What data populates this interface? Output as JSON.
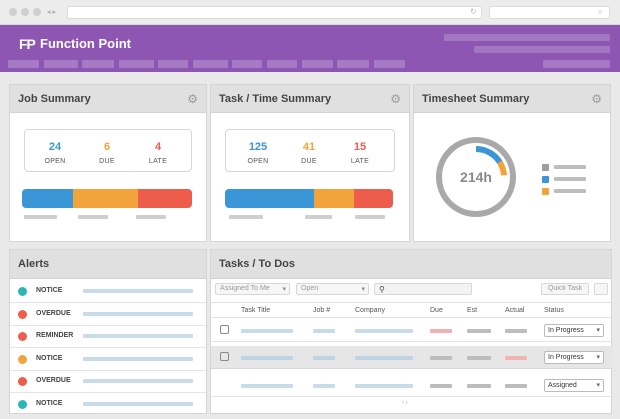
{
  "app": {
    "name": "Function Point",
    "logo_mark": "FP"
  },
  "colors": {
    "purple": "#8e56b3",
    "blue": "#3a96d6",
    "orange": "#f3a33b",
    "red": "#ee5c4b",
    "teal": "#2bb5b5"
  },
  "job_summary": {
    "title": "Job Summary",
    "stats": [
      {
        "value": "24",
        "label": "OPEN",
        "color": "#3a96d6"
      },
      {
        "value": "6",
        "label": "DUE",
        "color": "#f3a33b"
      },
      {
        "value": "4",
        "label": "LATE",
        "color": "#ee5c4b"
      }
    ],
    "bar_fractions": [
      0.3,
      0.38,
      0.32
    ]
  },
  "task_time_summary": {
    "title": "Task / Time Summary",
    "stats": [
      {
        "value": "125",
        "label": "OPEN",
        "color": "#3a96d6"
      },
      {
        "value": "41",
        "label": "DUE",
        "color": "#f3a33b"
      },
      {
        "value": "15",
        "label": "LATE",
        "color": "#ee5c4b"
      }
    ],
    "bar_fractions": [
      0.53,
      0.24,
      0.23
    ]
  },
  "timesheet_summary": {
    "title": "Timesheet Summary",
    "hours": "214h",
    "ring_progress": [
      {
        "color": "#3a96d6",
        "fraction": 0.16
      },
      {
        "color": "#f3a33b",
        "fraction": 0.08
      }
    ],
    "legend_colors": [
      "#9e9e9e",
      "#3a96d6",
      "#f3a33b"
    ]
  },
  "alerts": {
    "title": "Alerts",
    "items": [
      {
        "label": "NOTICE",
        "color": "#2bb5b5"
      },
      {
        "label": "OVERDUE",
        "color": "#ee5c4b"
      },
      {
        "label": "REMINDER",
        "color": "#ee5c4b"
      },
      {
        "label": "NOTICE",
        "color": "#f3a33b"
      },
      {
        "label": "OVERDUE",
        "color": "#ee5c4b"
      },
      {
        "label": "NOTICE",
        "color": "#2bb5b5"
      }
    ]
  },
  "tasks": {
    "title": "Tasks / To Dos",
    "filters": {
      "assigned": "Assigned To Me",
      "open": "Open",
      "quick_task": "Quick Task"
    },
    "columns": [
      "Task Title",
      "Job #",
      "Company",
      "Due",
      "Est",
      "Actual",
      "Status"
    ],
    "rows": [
      {
        "status": "In Progress",
        "icon": "clock-icon"
      },
      {
        "status": "In Progress",
        "icon": "clock-icon"
      },
      {
        "status": "Assigned",
        "icon": ""
      }
    ],
    "more": "‹ ›"
  }
}
